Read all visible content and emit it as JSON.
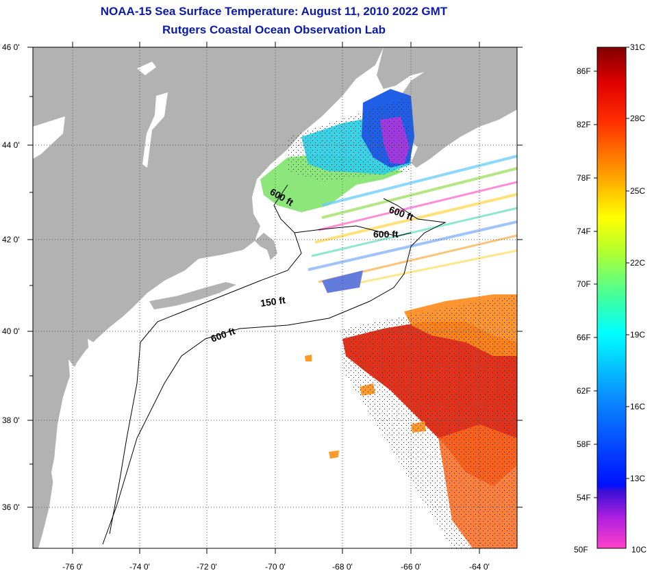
{
  "title": {
    "line1": "NOAA-15 Sea Surface Temperature:  August 11, 2010 2022 GMT",
    "line2": "Rutgers Coastal Ocean Observation Lab"
  },
  "map": {
    "lat_labels": [
      "46 0'",
      "44 0'",
      "42 0'",
      "40 0'",
      "38 0'",
      "36 0'"
    ],
    "lon_labels": [
      "-76 0'",
      "-74 0'",
      "-72 0'",
      "-70 0'",
      "-68 0'",
      "-66 0'",
      "-64 0'"
    ],
    "contour_labels": [
      "600 ft",
      "600 ft",
      "600 ft",
      "150 ft",
      "600 ft"
    ]
  },
  "colorbar": {
    "fahrenheit_labels": [
      "86F",
      "82F",
      "78F",
      "74F",
      "70F",
      "66F",
      "62F",
      "58F",
      "54F",
      "50F"
    ],
    "celsius_labels": [
      "31C",
      "28C",
      "25C",
      "22C",
      "19C",
      "16C",
      "13C",
      "10C"
    ]
  },
  "colors": {
    "land": "#b2b2b2",
    "title": "#0a1aa8",
    "warm": "#e2321c",
    "cool": "#1f5fe6"
  }
}
